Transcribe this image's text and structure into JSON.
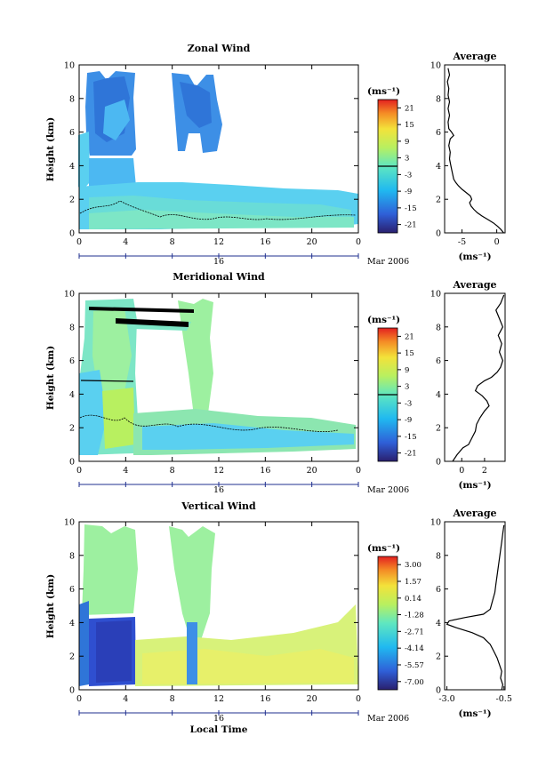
{
  "chart_data": [
    {
      "type": "heatmap",
      "title": "Zonal Wind",
      "ylabel": "Height (km)",
      "xlabel": "",
      "xlim": [
        0,
        24
      ],
      "ylim": [
        0,
        10
      ],
      "xticks": [
        "0",
        "4",
        "8",
        "12",
        "16",
        "20",
        "0"
      ],
      "yticks": [
        "0",
        "2",
        "4",
        "6",
        "8",
        "10"
      ],
      "date_day": "16",
      "date_month": "Mar 2006",
      "colorbar": {
        "unit": "(ms⁻¹)",
        "ticks": [
          "21",
          "15",
          "9",
          "3",
          "-3",
          "-9",
          "-15",
          "-21"
        ],
        "min": -24,
        "max": 24
      },
      "average": {
        "title": "Average",
        "xlabel": "(ms⁻¹)",
        "xlim": [
          -7.5,
          1.2
        ],
        "xticks": [
          "-5",
          "0"
        ],
        "tick_values": [
          -5,
          0
        ],
        "profile": [
          [
            1.0,
            0
          ],
          [
            0.6,
            0.2
          ],
          [
            0.1,
            0.4
          ],
          [
            -0.5,
            0.6
          ],
          [
            -1.3,
            0.8
          ],
          [
            -2.1,
            1.0
          ],
          [
            -2.8,
            1.2
          ],
          [
            -3.3,
            1.4
          ],
          [
            -3.7,
            1.6
          ],
          [
            -3.9,
            1.8
          ],
          [
            -3.6,
            2.0
          ],
          [
            -3.8,
            2.2
          ],
          [
            -4.4,
            2.4
          ],
          [
            -5.0,
            2.6
          ],
          [
            -5.5,
            2.8
          ],
          [
            -5.9,
            3.0
          ],
          [
            -6.2,
            3.2
          ],
          [
            -6.3,
            3.4
          ],
          [
            -6.4,
            3.6
          ],
          [
            -6.5,
            3.8
          ],
          [
            -6.6,
            4.0
          ],
          [
            -6.8,
            4.4
          ],
          [
            -6.7,
            4.8
          ],
          [
            -6.9,
            5.2
          ],
          [
            -6.7,
            5.6
          ],
          [
            -6.2,
            5.8
          ],
          [
            -6.5,
            6.0
          ],
          [
            -6.9,
            6.2
          ],
          [
            -7.0,
            6.6
          ],
          [
            -6.8,
            7.0
          ],
          [
            -7.0,
            7.4
          ],
          [
            -6.8,
            7.8
          ],
          [
            -7.0,
            8.2
          ],
          [
            -6.9,
            8.6
          ],
          [
            -7.1,
            9.0
          ],
          [
            -6.8,
            9.4
          ],
          [
            -7.0,
            9.8
          ]
        ]
      }
    },
    {
      "type": "heatmap",
      "title": "Meridional Wind",
      "ylabel": "Height (km)",
      "xlabel": "",
      "xlim": [
        0,
        24
      ],
      "ylim": [
        0,
        10
      ],
      "xticks": [
        "0",
        "4",
        "8",
        "12",
        "16",
        "20",
        "0"
      ],
      "yticks": [
        "0",
        "2",
        "4",
        "6",
        "8",
        "10"
      ],
      "date_day": "16",
      "date_month": "Mar 2006",
      "colorbar": {
        "unit": "(ms⁻¹)",
        "ticks": [
          "21",
          "15",
          "9",
          "3",
          "-3",
          "-9",
          "-15",
          "-21"
        ],
        "min": -24,
        "max": 24
      },
      "average": {
        "title": "Average",
        "xlabel": "(ms⁻¹)",
        "xlim": [
          -1.5,
          3.8
        ],
        "xticks": [
          "0",
          "2"
        ],
        "tick_values": [
          0,
          2
        ],
        "profile": [
          [
            -0.8,
            0
          ],
          [
            -0.4,
            0.4
          ],
          [
            0.1,
            0.8
          ],
          [
            0.6,
            1.0
          ],
          [
            0.9,
            1.4
          ],
          [
            1.2,
            1.8
          ],
          [
            1.3,
            2.2
          ],
          [
            1.6,
            2.6
          ],
          [
            2.0,
            3.0
          ],
          [
            2.4,
            3.3
          ],
          [
            2.2,
            3.6
          ],
          [
            1.8,
            3.9
          ],
          [
            1.2,
            4.2
          ],
          [
            1.4,
            4.5
          ],
          [
            2.0,
            4.8
          ],
          [
            2.6,
            5.0
          ],
          [
            3.1,
            5.3
          ],
          [
            3.4,
            5.6
          ],
          [
            3.6,
            6.0
          ],
          [
            3.3,
            6.5
          ],
          [
            3.5,
            7.0
          ],
          [
            3.2,
            7.5
          ],
          [
            3.6,
            8.0
          ],
          [
            3.3,
            8.5
          ],
          [
            3.0,
            9.0
          ],
          [
            3.4,
            9.4
          ],
          [
            3.7,
            9.9
          ]
        ]
      }
    },
    {
      "type": "heatmap",
      "title": "Vertical Wind",
      "ylabel": "Height (km)",
      "xlabel": "Local Time",
      "xlim": [
        0,
        24
      ],
      "ylim": [
        0,
        10
      ],
      "xticks": [
        "0",
        "4",
        "8",
        "12",
        "16",
        "20",
        "0"
      ],
      "yticks": [
        "0",
        "2",
        "4",
        "6",
        "8",
        "10"
      ],
      "date_day": "16",
      "date_month": "Mar 2006",
      "colorbar": {
        "unit": "(ms⁻¹)",
        "ticks": [
          "3.00",
          "1.57",
          "0.14",
          "-1.28",
          "-2.71",
          "-4.14",
          "-5.57",
          "-7.00"
        ],
        "min": -7.7,
        "max": 3.7
      },
      "average": {
        "title": "Average",
        "xlabel": "(ms⁻¹)",
        "xlim": [
          -3.1,
          -0.45
        ],
        "xticks": [
          "-3.0",
          "-0.5"
        ],
        "tick_values": [
          -3.0,
          -0.5
        ],
        "profile": [
          [
            -0.6,
            0
          ],
          [
            -0.55,
            0.3
          ],
          [
            -0.65,
            0.7
          ],
          [
            -0.6,
            1.1
          ],
          [
            -0.7,
            1.5
          ],
          [
            -0.8,
            1.9
          ],
          [
            -0.95,
            2.3
          ],
          [
            -1.1,
            2.7
          ],
          [
            -1.4,
            3.1
          ],
          [
            -1.9,
            3.4
          ],
          [
            -2.6,
            3.7
          ],
          [
            -3.0,
            3.9
          ],
          [
            -2.9,
            4.1
          ],
          [
            -2.2,
            4.3
          ],
          [
            -1.4,
            4.5
          ],
          [
            -1.1,
            4.8
          ],
          [
            -1.0,
            5.3
          ],
          [
            -0.9,
            5.8
          ],
          [
            -0.85,
            6.3
          ],
          [
            -0.8,
            6.8
          ],
          [
            -0.75,
            7.3
          ],
          [
            -0.7,
            7.8
          ],
          [
            -0.65,
            8.3
          ],
          [
            -0.6,
            8.8
          ],
          [
            -0.55,
            9.3
          ],
          [
            -0.5,
            9.8
          ]
        ]
      }
    }
  ],
  "colors": {
    "text": "#000000",
    "axis": "#000000",
    "date_bar": "#1f2f8f"
  }
}
